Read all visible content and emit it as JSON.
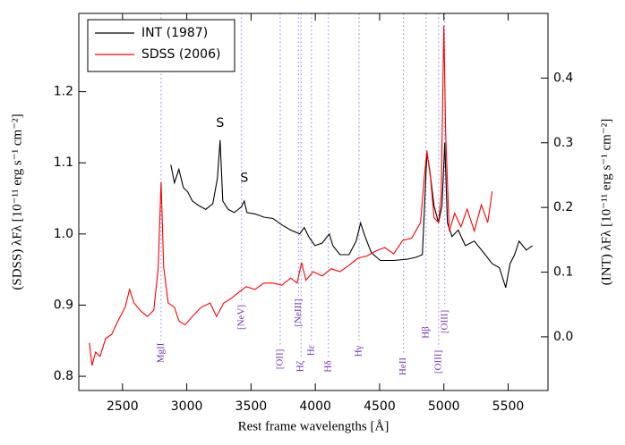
{
  "chart_data": {
    "type": "line",
    "xlabel": "Rest frame wavelengths [Å]",
    "ylabel": "(SDSS) λFλ [10⁻¹¹ erg s⁻¹ cm⁻²]",
    "y2label": "(INT) λFλ [10⁻¹¹ erg s⁻¹ cm⁻²]",
    "xlim": [
      2160,
      5810
    ],
    "ylim": [
      0.78,
      1.31
    ],
    "y2lim": [
      -0.083,
      0.5
    ],
    "xticks": [
      2500,
      3000,
      3500,
      4000,
      4500,
      5000,
      5500
    ],
    "yticks": [
      0.8,
      0.9,
      {
        "value": 1,
        "label": "1.0"
      },
      1.1,
      1.2
    ],
    "y2ticks": [
      {
        "value": 0,
        "label": "0.0"
      },
      0.1,
      0.2,
      0.3,
      0.4
    ],
    "legend": "upper left",
    "series": [
      {
        "name": "INT (1987)",
        "color": "#000000",
        "axis": "y2",
        "x": [
          2876,
          2904,
          2939,
          2973,
          3008,
          3043,
          3092,
          3148,
          3203,
          3238,
          3259,
          3280,
          3322,
          3370,
          3426,
          3447,
          3468,
          3531,
          3600,
          3670,
          3740,
          3809,
          3879,
          3914,
          3948,
          3997,
          4053,
          4109,
          4136,
          4192,
          4262,
          4318,
          4352,
          4387,
          4436,
          4506,
          4610,
          4714,
          4784,
          4833,
          4868,
          4889,
          4923,
          4958,
          4986,
          5007,
          5028,
          5063,
          5111,
          5167,
          5237,
          5306,
          5376,
          5432,
          5481,
          5515,
          5550,
          5585,
          5641,
          5689
        ],
        "values": [
          0.266,
          0.238,
          0.259,
          0.231,
          0.224,
          0.21,
          0.203,
          0.197,
          0.206,
          0.245,
          0.304,
          0.21,
          0.197,
          0.192,
          0.201,
          0.21,
          0.192,
          0.19,
          0.185,
          0.183,
          0.173,
          0.165,
          0.159,
          0.169,
          0.155,
          0.141,
          0.145,
          0.159,
          0.141,
          0.127,
          0.127,
          0.148,
          0.176,
          0.155,
          0.13,
          0.118,
          0.118,
          0.12,
          0.123,
          0.127,
          0.284,
          0.259,
          0.203,
          0.176,
          0.203,
          0.3,
          0.176,
          0.155,
          0.165,
          0.141,
          0.148,
          0.131,
          0.113,
          0.107,
          0.076,
          0.113,
          0.127,
          0.148,
          0.134,
          0.141
        ]
      },
      {
        "name": "SDSS (2006)",
        "color": "#ff0000",
        "x": [
          2242,
          2263,
          2291,
          2326,
          2368,
          2416,
          2465,
          2521,
          2555,
          2590,
          2646,
          2695,
          2744,
          2778,
          2800,
          2820,
          2855,
          2904,
          2939,
          2987,
          3043,
          3113,
          3182,
          3231,
          3287,
          3343,
          3391,
          3461,
          3531,
          3600,
          3670,
          3740,
          3809,
          3858,
          3893,
          3927,
          3983,
          4053,
          4123,
          4192,
          4262,
          4331,
          4401,
          4471,
          4540,
          4610,
          4680,
          4749,
          4819,
          4847,
          4868,
          4896,
          4923,
          4958,
          4979,
          5000,
          5014,
          5042,
          5084,
          5132,
          5181,
          5237,
          5292,
          5341,
          5376
        ],
        "values": [
          0.847,
          0.815,
          0.834,
          0.828,
          0.853,
          0.859,
          0.878,
          0.897,
          0.922,
          0.903,
          0.891,
          0.884,
          0.893,
          0.953,
          1.073,
          0.953,
          0.903,
          0.897,
          0.878,
          0.872,
          0.884,
          0.897,
          0.903,
          0.884,
          0.903,
          0.909,
          0.916,
          0.926,
          0.922,
          0.931,
          0.931,
          0.928,
          0.938,
          0.931,
          0.96,
          0.935,
          0.947,
          0.941,
          0.951,
          0.947,
          0.956,
          0.966,
          0.969,
          0.976,
          0.981,
          0.972,
          0.991,
          0.994,
          1.016,
          1.079,
          1.117,
          1.079,
          1.023,
          1.016,
          1.054,
          1.293,
          1.142,
          1.004,
          1.029,
          1.01,
          1.035,
          1.004,
          1.041,
          1.016,
          1.06
        ]
      }
    ],
    "lines": [
      {
        "label": "MgII",
        "x": 2800
      },
      {
        "label": "[NeV]",
        "x": 3426
      },
      {
        "label": "[OII]",
        "x": 3727
      },
      {
        "label": "Hζ",
        "x": 3889
      },
      {
        "label": "[NeIII]",
        "x": 3869
      },
      {
        "label": "Hε",
        "x": 3970
      },
      {
        "label": "Hδ",
        "x": 4102
      },
      {
        "label": "Hγ",
        "x": 4340
      },
      {
        "label": "HeII",
        "x": 4686
      },
      {
        "label": "Hβ",
        "x": 4861
      },
      {
        "label": "[OIII]",
        "x": 4959
      },
      {
        "label": "[OIII]",
        "x": 5007
      }
    ],
    "annotations": [
      {
        "text": "S",
        "x": 3259,
        "y": 0.33,
        "axis": "y2"
      },
      {
        "text": "S",
        "x": 3447,
        "y": 0.245,
        "axis": "y2"
      }
    ]
  }
}
